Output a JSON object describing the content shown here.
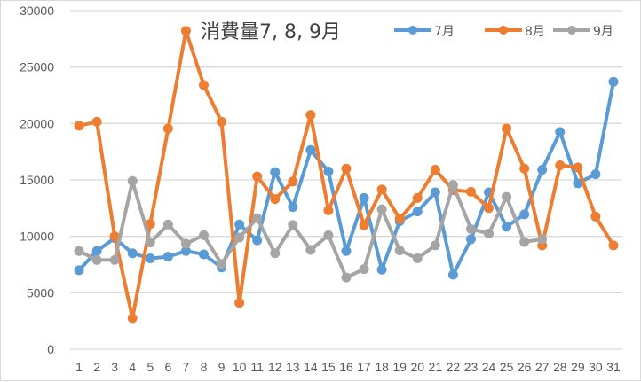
{
  "chart_data": {
    "type": "line",
    "title": "消費量7, 8, 9月",
    "xlabel": "",
    "ylabel": "",
    "ylim": [
      0,
      30000
    ],
    "yticks": [
      0,
      5000,
      10000,
      15000,
      20000,
      25000,
      30000
    ],
    "grid": true,
    "legend_position": "top-right",
    "categories": [
      "1",
      "2",
      "3",
      "4",
      "5",
      "6",
      "7",
      "8",
      "9",
      "10",
      "11",
      "12",
      "13",
      "14",
      "15",
      "16",
      "17",
      "18",
      "19",
      "20",
      "21",
      "22",
      "23",
      "24",
      "25",
      "26",
      "27",
      "28",
      "29",
      "30",
      "31"
    ],
    "series": [
      {
        "name": "7月",
        "color": "#5B9BD5",
        "values": [
          7000,
          8700,
          9850,
          8500,
          8050,
          8200,
          8700,
          8400,
          7250,
          11050,
          9650,
          15700,
          12600,
          17650,
          15750,
          8700,
          13400,
          7050,
          11350,
          12200,
          13900,
          6600,
          9750,
          13900,
          10850,
          11950,
          15900,
          19250,
          14700,
          15500,
          23700
        ]
      },
      {
        "name": "8月",
        "color": "#ED7D31",
        "values": [
          19800,
          20150,
          10000,
          2750,
          11100,
          19550,
          28200,
          23400,
          20150,
          4100,
          15300,
          13300,
          14850,
          20750,
          12300,
          16000,
          11000,
          14150,
          11550,
          13400,
          15900,
          14100,
          13950,
          12500,
          19550,
          16000,
          9200,
          16300,
          16100,
          11750,
          9200
        ]
      },
      {
        "name": "9月",
        "color": "#A5A5A5",
        "values": [
          8700,
          7900,
          7900,
          14900,
          9450,
          11050,
          9350,
          10100,
          7550,
          9900,
          11600,
          8500,
          11000,
          8800,
          10100,
          6350,
          7100,
          12400,
          8750,
          8050,
          9200,
          14550,
          10650,
          10250,
          13500,
          9500,
          9750,
          null,
          null,
          null,
          null
        ]
      }
    ]
  },
  "title": "消費量7, 8, 9月",
  "legend": [
    {
      "label": "7月",
      "color": "#5B9BD5"
    },
    {
      "label": "8月",
      "color": "#ED7D31"
    },
    {
      "label": "9月",
      "color": "#A5A5A5"
    }
  ],
  "y_axis_labels": [
    "0",
    "5000",
    "10000",
    "15000",
    "20000",
    "25000",
    "30000"
  ]
}
